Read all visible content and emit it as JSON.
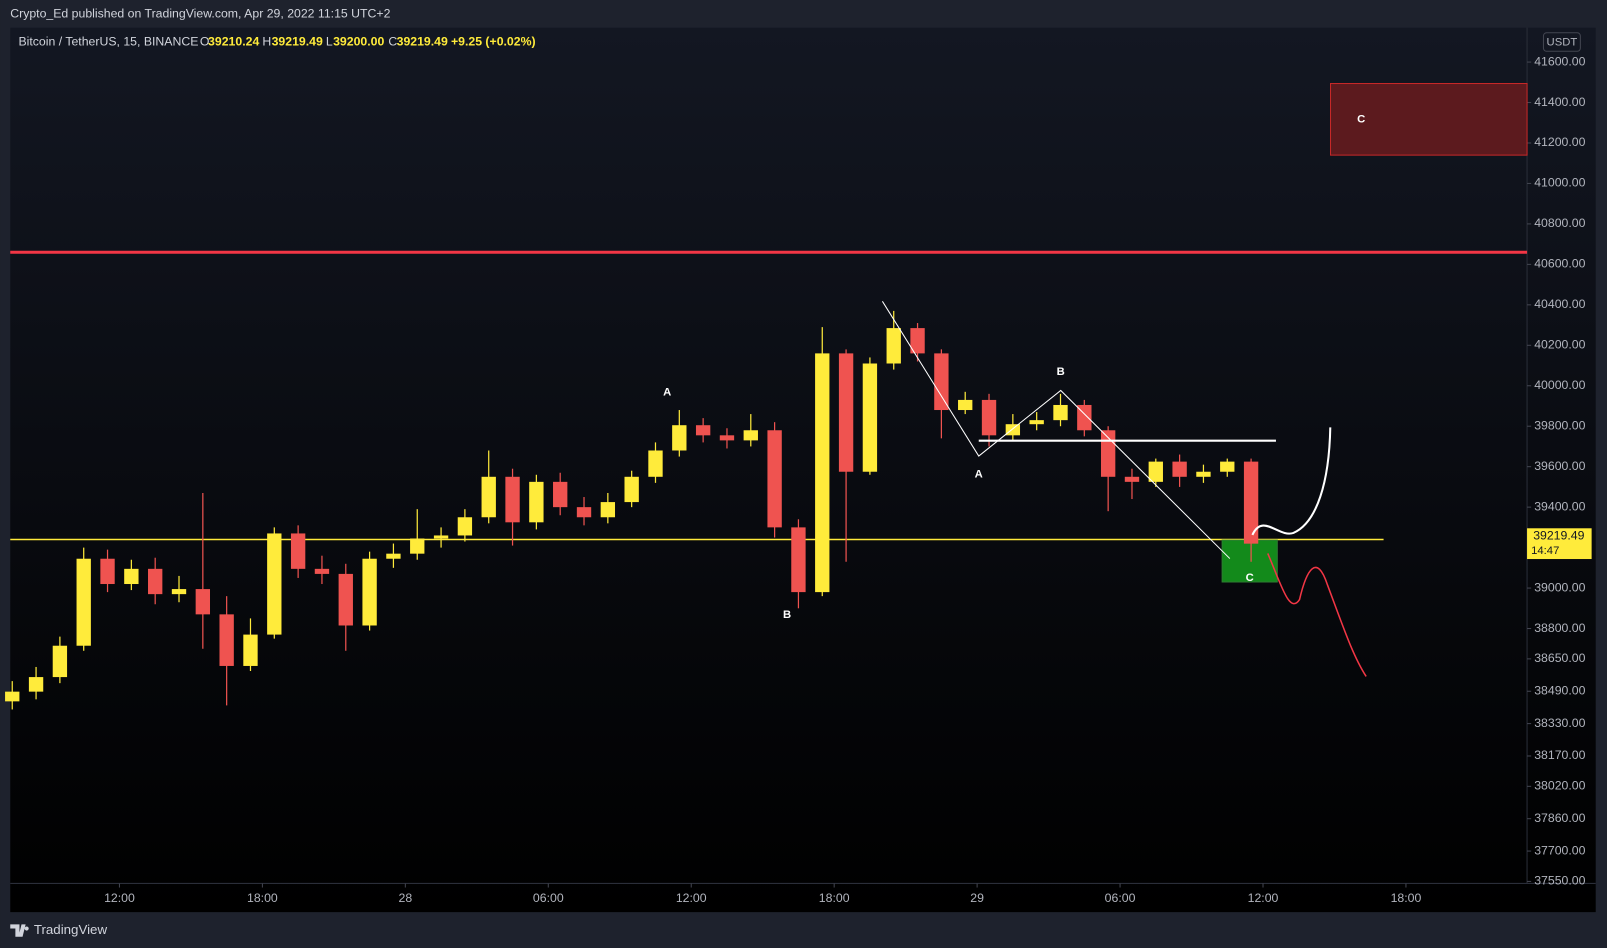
{
  "header": {
    "published": "Crypto_Ed published on TradingView.com, Apr 29, 2022 11:15 UTC+2"
  },
  "legend": {
    "symbol": "Bitcoin / TetherUS, 15, BINANCE",
    "o_label": "O",
    "o": "39210.24",
    "h_label": "H",
    "h": "39219.49",
    "l_label": "L",
    "l": "39200.00",
    "c_label": "C",
    "c": "39219.49",
    "change": "+9.25 (+0.02%)"
  },
  "footer": {
    "brand": "TradingView"
  },
  "chart_data": {
    "type": "candlestick",
    "y_unit": "USDT",
    "up_color": "#ffeb3b",
    "down_color": "#ef5350",
    "x": [
      "2022-04-27 07:30",
      "2022-04-27 08:30",
      "2022-04-27 09:30",
      "2022-04-27 10:30",
      "2022-04-27 11:30",
      "2022-04-27 12:30",
      "2022-04-27 13:30",
      "2022-04-27 14:30",
      "2022-04-27 15:30",
      "2022-04-27 16:30",
      "2022-04-27 17:30",
      "2022-04-27 18:30",
      "2022-04-27 19:30",
      "2022-04-27 20:30",
      "2022-04-27 21:30",
      "2022-04-27 22:30",
      "2022-04-27 23:30",
      "2022-04-28 00:30",
      "2022-04-28 01:30",
      "2022-04-28 02:30",
      "2022-04-28 03:30",
      "2022-04-28 04:30",
      "2022-04-28 05:30",
      "2022-04-28 06:30",
      "2022-04-28 07:30",
      "2022-04-28 08:30",
      "2022-04-28 09:30",
      "2022-04-28 10:30",
      "2022-04-28 11:30",
      "2022-04-28 12:30",
      "2022-04-28 13:30",
      "2022-04-28 14:30",
      "2022-04-28 15:30",
      "2022-04-28 16:30",
      "2022-04-28 17:30",
      "2022-04-28 18:30",
      "2022-04-28 19:30",
      "2022-04-28 20:30",
      "2022-04-28 21:30",
      "2022-04-28 22:30",
      "2022-04-28 23:30",
      "2022-04-29 00:30",
      "2022-04-29 01:30",
      "2022-04-29 02:30",
      "2022-04-29 03:30",
      "2022-04-29 04:30",
      "2022-04-29 05:30",
      "2022-04-29 06:30",
      "2022-04-29 07:30",
      "2022-04-29 08:30",
      "2022-04-29 09:30",
      "2022-04-29 10:30",
      "2022-04-29 11:30"
    ],
    "open": [
      38440,
      38488,
      38560,
      38715,
      39145,
      39020,
      39095,
      38970,
      38995,
      38870,
      38615,
      38770,
      39270,
      39095,
      39070,
      38815,
      39145,
      39170,
      39245,
      39260,
      39350,
      39550,
      39325,
      39525,
      39400,
      39350,
      39425,
      39550,
      39680,
      39805,
      39755,
      39730,
      39780,
      39300,
      38980,
      40160,
      39575,
      40110,
      40285,
      40160,
      39880,
      39930,
      39755,
      39810,
      39830,
      39905,
      39780,
      39550,
      39525,
      39625,
      39550,
      39575,
      39625
    ],
    "high": [
      38540,
      38610,
      38760,
      39200,
      39190,
      39140,
      39150,
      39060,
      39470,
      38960,
      38850,
      39300,
      39310,
      39160,
      39120,
      39180,
      39220,
      39390,
      39300,
      39390,
      39680,
      39590,
      39560,
      39570,
      39450,
      39470,
      39580,
      39720,
      39880,
      39840,
      39790,
      39860,
      39820,
      39340,
      40290,
      40180,
      40140,
      40370,
      40310,
      40180,
      39970,
      39960,
      39860,
      39870,
      39960,
      39930,
      39800,
      39590,
      39640,
      39660,
      39610,
      39640,
      39640
    ],
    "low": [
      38400,
      38450,
      38530,
      38690,
      38980,
      38990,
      38920,
      38930,
      38700,
      38420,
      38590,
      38750,
      39050,
      39020,
      38690,
      38790,
      39100,
      39140,
      39200,
      39230,
      39320,
      39210,
      39290,
      39360,
      39310,
      39320,
      39400,
      39520,
      39650,
      39720,
      39690,
      39700,
      39250,
      38900,
      38960,
      39130,
      39560,
      40080,
      40120,
      39740,
      39860,
      39700,
      39730,
      39780,
      39800,
      39750,
      39380,
      39440,
      39500,
      39500,
      39520,
      39550,
      39130
    ],
    "close": [
      38488,
      38560,
      38715,
      39145,
      39020,
      39095,
      38970,
      38995,
      38870,
      38615,
      38770,
      39270,
      39095,
      39070,
      38815,
      39145,
      39170,
      39245,
      39260,
      39350,
      39550,
      39325,
      39525,
      39400,
      39350,
      39425,
      39550,
      39680,
      39805,
      39755,
      39730,
      39780,
      39300,
      38980,
      40160,
      39575,
      40110,
      40285,
      40160,
      39880,
      39930,
      39755,
      39810,
      39830,
      39905,
      39780,
      39550,
      39525,
      39625,
      39550,
      39575,
      39625,
      39219.49
    ],
    "xlim": [
      "2022-04-27 07:25",
      "2022-04-29 23:05"
    ],
    "xticks": [
      {
        "value": "2022-04-27 12:00",
        "label": "12:00"
      },
      {
        "value": "2022-04-27 18:00",
        "label": "18:00"
      },
      {
        "value": "2022-04-28 00:00",
        "label": "28"
      },
      {
        "value": "2022-04-28 06:00",
        "label": "06:00"
      },
      {
        "value": "2022-04-28 12:00",
        "label": "12:00"
      },
      {
        "value": "2022-04-28 18:00",
        "label": "18:00"
      },
      {
        "value": "2022-04-29 00:00",
        "label": "29"
      },
      {
        "value": "2022-04-29 06:00",
        "label": "06:00"
      },
      {
        "value": "2022-04-29 12:00",
        "label": "12:00"
      },
      {
        "value": "2022-04-29 18:00",
        "label": "18:00"
      }
    ],
    "ylim": [
      37540,
      41770
    ],
    "yticks": [
      {
        "value": 41600,
        "label": "41600.00"
      },
      {
        "value": 41400,
        "label": "41400.00"
      },
      {
        "value": 41200,
        "label": "41200.00"
      },
      {
        "value": 41000,
        "label": "41000.00"
      },
      {
        "value": 40800,
        "label": "40800.00"
      },
      {
        "value": 40600,
        "label": "40600.00"
      },
      {
        "value": 40400,
        "label": "40400.00"
      },
      {
        "value": 40200,
        "label": "40200.00"
      },
      {
        "value": 40000,
        "label": "40000.00"
      },
      {
        "value": 39800,
        "label": "39800.00"
      },
      {
        "value": 39600,
        "label": "39600.00"
      },
      {
        "value": 39400,
        "label": "39400.00"
      },
      {
        "value": 39000,
        "label": "39000.00"
      },
      {
        "value": 38800,
        "label": "38800.00"
      },
      {
        "value": 38650,
        "label": "38650.00"
      },
      {
        "value": 38490,
        "label": "38490.00"
      },
      {
        "value": 38330,
        "label": "38330.00"
      },
      {
        "value": 38170,
        "label": "38170.00"
      },
      {
        "value": 38020,
        "label": "38020.00"
      },
      {
        "value": 37860,
        "label": "37860.00"
      },
      {
        "value": 37700,
        "label": "37700.00"
      },
      {
        "value": 37550,
        "label": "37550.00"
      }
    ],
    "last_price": {
      "value": 39219.49,
      "label": "39219.49"
    },
    "countdown": "14:47",
    "levels": [
      {
        "value": 40660,
        "color": "#f23645"
      },
      {
        "value": 39240,
        "color": "#ffeb3b"
      }
    ],
    "zones": [
      {
        "label": "C",
        "top": 41494,
        "bottom": 41140,
        "from": "2022-04-29 14:50",
        "to": "2022-04-29 23:05",
        "color": "#5c1a1e",
        "border": "#c62828"
      },
      {
        "label": "C",
        "top": 39237,
        "bottom": 39030,
        "from": "2022-04-29 10:17",
        "to": "2022-04-29 12:36",
        "color": "#138a1b",
        "border": "#2e7d32"
      }
    ],
    "annotations": [
      "A",
      "B",
      "A",
      "B"
    ]
  }
}
